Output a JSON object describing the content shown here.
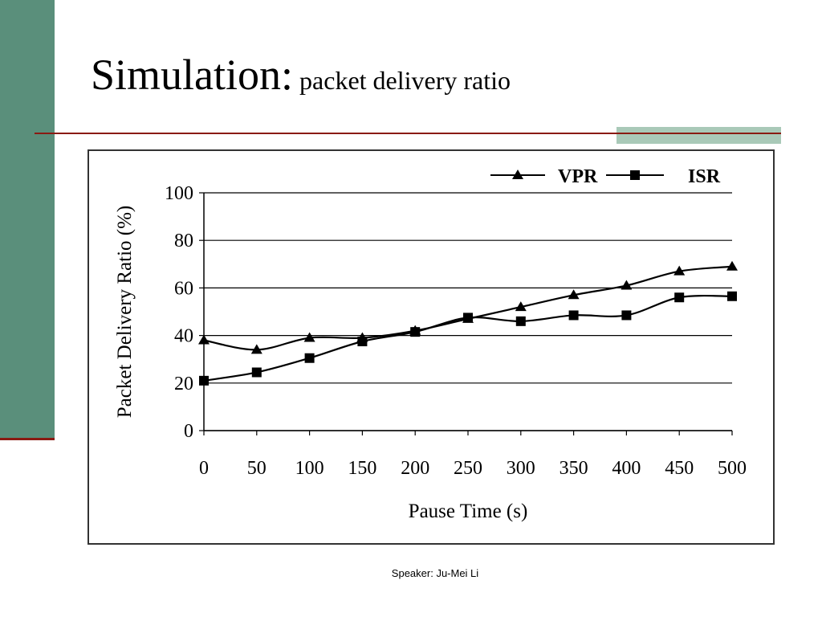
{
  "slide": {
    "title_main": "Simulation:",
    "title_sub": "packet delivery ratio",
    "footer": "Speaker: Ju-Mei Li",
    "colors": {
      "sidebar": "#5a8f7b",
      "rule": "#8a1a12",
      "accent": "#a9c9b8"
    }
  },
  "chart_data": {
    "type": "line",
    "title": "",
    "xlabel": "Pause Time (s)",
    "ylabel": "Packet Delivery Ratio (%)",
    "x": [
      0,
      50,
      100,
      150,
      200,
      250,
      300,
      350,
      400,
      450,
      500
    ],
    "xlim": [
      0,
      500
    ],
    "ylim": [
      0,
      100
    ],
    "xticks": [
      0,
      50,
      100,
      150,
      200,
      250,
      300,
      350,
      400,
      450,
      500
    ],
    "yticks": [
      0,
      20,
      40,
      60,
      80,
      100
    ],
    "grid": "horizontal",
    "legend_position": "top-right",
    "series": [
      {
        "name": "VPR",
        "marker": "triangle",
        "values": [
          38,
          34,
          39,
          39,
          42,
          47,
          52,
          57,
          61,
          67,
          69
        ]
      },
      {
        "name": "ISR",
        "marker": "square",
        "values": [
          21,
          24.5,
          30.5,
          37.5,
          41.5,
          47.5,
          46,
          48.5,
          48.5,
          56,
          56.5
        ]
      }
    ]
  }
}
